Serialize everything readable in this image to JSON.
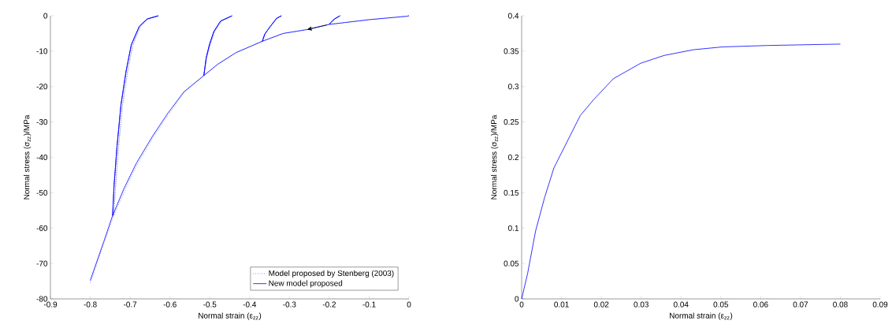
{
  "chart_data": [
    {
      "type": "line",
      "xlabel": "Normal strain (ε$_{zz}$)",
      "ylabel": "Normal stress (σ$_{zz}$)/MPa",
      "xlim": [
        -0.9,
        0
      ],
      "ylim": [
        -80,
        0
      ],
      "xticks": [
        -0.9,
        -0.8,
        -0.7,
        -0.6,
        -0.5,
        -0.4,
        -0.3,
        -0.2,
        -0.1,
        0
      ],
      "yticks": [
        -80,
        -70,
        -60,
        -50,
        -40,
        -30,
        -20,
        -10,
        0
      ],
      "legend": "bottom right",
      "marker": "none",
      "series": [
        {
          "name": "Model proposed by Stenberg (2003)",
          "color": "#6060ff",
          "line_style": "dotted",
          "x": [
            0,
            -0.0066,
            -0.1,
            -0.2005,
            -0.187,
            -0.173,
            -0.187,
            -0.2005,
            -0.256,
            -0.316,
            -0.368,
            -0.362,
            -0.348,
            -0.332,
            -0.32,
            -0.332,
            -0.348,
            -0.362,
            -0.368,
            -0.434,
            -0.48,
            -0.515,
            -0.508,
            -0.499,
            -0.488,
            -0.471,
            -0.444,
            -0.471,
            -0.488,
            -0.499,
            -0.508,
            -0.515,
            -0.563,
            -0.601,
            -0.64,
            -0.68,
            -0.712,
            -0.741,
            -0.736,
            -0.729,
            -0.719,
            -0.706,
            -0.693,
            -0.674,
            -0.655,
            -0.629,
            -0.655,
            -0.674,
            -0.693,
            -0.706,
            -0.719,
            -0.729,
            -0.736,
            -0.741,
            -0.764,
            -0.8
          ],
          "values": [
            0,
            -0.15,
            -1.1,
            -2.45,
            -0.9,
            0,
            -0.9,
            -2.45,
            -3.9,
            -5.0,
            -7.2,
            -5.2,
            -3.0,
            -0.7,
            0,
            -0.7,
            -3.0,
            -5.2,
            -7.2,
            -10.4,
            -13.7,
            -16.9,
            -11.9,
            -8.2,
            -4.5,
            -1.5,
            0,
            -1.5,
            -4.5,
            -8.2,
            -11.9,
            -16.9,
            -21.5,
            -27.5,
            -34.1,
            -41.6,
            -49.0,
            -56.5,
            -47.5,
            -37.1,
            -25.2,
            -15.6,
            -8.2,
            -3.0,
            -0.9,
            0,
            -0.9,
            -3.0,
            -8.2,
            -15.6,
            -25.2,
            -37.1,
            -47.5,
            -56.5,
            -63.8,
            -75.5
          ]
        },
        {
          "name": "New model proposed",
          "color": "#0000ff",
          "line_style": "solid",
          "x": [
            0,
            -0.0066,
            -0.1,
            -0.2005,
            -0.187,
            -0.173,
            -0.187,
            -0.2005,
            -0.256,
            -0.316,
            -0.368,
            -0.362,
            -0.348,
            -0.332,
            -0.32,
            -0.332,
            -0.348,
            -0.362,
            -0.368,
            -0.434,
            -0.48,
            -0.515,
            -0.509,
            -0.501,
            -0.49,
            -0.473,
            -0.444,
            -0.473,
            -0.49,
            -0.501,
            -0.509,
            -0.515,
            -0.565,
            -0.605,
            -0.644,
            -0.684,
            -0.716,
            -0.744,
            -0.74,
            -0.733,
            -0.723,
            -0.71,
            -0.697,
            -0.677,
            -0.657,
            -0.629,
            -0.657,
            -0.677,
            -0.697,
            -0.71,
            -0.723,
            -0.733,
            -0.74,
            -0.744,
            -0.766,
            -0.8
          ],
          "values": [
            0,
            -0.15,
            -1.1,
            -2.45,
            -0.9,
            0,
            -0.9,
            -2.45,
            -3.9,
            -5.0,
            -7.2,
            -5.2,
            -3.0,
            -0.7,
            0,
            -0.7,
            -3.0,
            -5.2,
            -7.2,
            -10.4,
            -13.7,
            -16.9,
            -11.9,
            -8.2,
            -4.5,
            -1.5,
            0,
            -1.5,
            -4.5,
            -8.2,
            -11.9,
            -16.9,
            -21.5,
            -27.5,
            -34.1,
            -41.6,
            -49.0,
            -56.5,
            -47.5,
            -37.1,
            -25.2,
            -15.6,
            -8.2,
            -3.0,
            -0.9,
            0,
            -0.9,
            -3.0,
            -8.2,
            -15.6,
            -25.2,
            -37.1,
            -47.5,
            -56.5,
            -63.8,
            -74.8
          ]
        }
      ]
    },
    {
      "type": "line",
      "xlabel": "Normal strain (ε$_{zz}$)",
      "ylabel": "Normal stress (σ$_{zz}$)/MPa",
      "xlim": [
        0,
        0.09
      ],
      "ylim": [
        0,
        0.4
      ],
      "xticks": [
        0,
        0.01,
        0.02,
        0.03,
        0.04,
        0.05,
        0.06,
        0.07,
        0.08,
        0.09
      ],
      "yticks": [
        0,
        0.05,
        0.1,
        0.15,
        0.2,
        0.25,
        0.3,
        0.35,
        0.4
      ],
      "legend": false,
      "marker": "none",
      "series": [
        {
          "color": "#0000ff",
          "line_style": "solid",
          "x": [
            0,
            0.0015,
            0.0035,
            0.0058,
            0.0081,
            0.0114,
            0.0147,
            0.018,
            0.023,
            0.0299,
            0.0358,
            0.0431,
            0.0504,
            0.0616,
            0.08
          ],
          "values": [
            0,
            0.036,
            0.096,
            0.144,
            0.185,
            0.222,
            0.259,
            0.281,
            0.311,
            0.333,
            0.344,
            0.352,
            0.356,
            0.358,
            0.36
          ]
        }
      ]
    }
  ]
}
